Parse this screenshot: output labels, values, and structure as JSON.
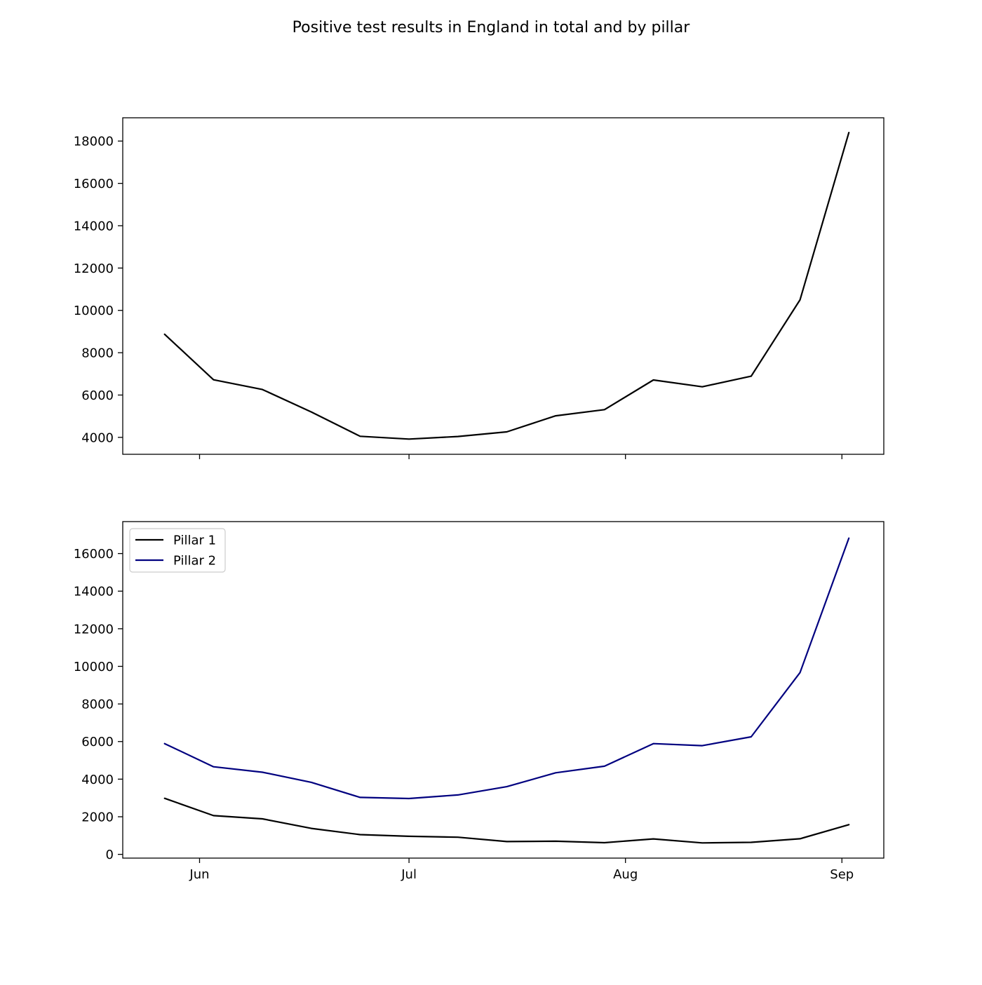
{
  "figure": {
    "suptitle": "Positive test results in England in total and by pillar"
  },
  "chart_data": [
    {
      "type": "line",
      "x_axis": "date",
      "x_dates": [
        "2020-05-27",
        "2020-06-03",
        "2020-06-10",
        "2020-06-17",
        "2020-06-24",
        "2020-07-01",
        "2020-07-08",
        "2020-07-15",
        "2020-07-22",
        "2020-07-29",
        "2020-08-05",
        "2020-08-12",
        "2020-08-19",
        "2020-08-26",
        "2020-09-02"
      ],
      "xticks": [
        {
          "date": "2020-06-01",
          "label": ""
        },
        {
          "date": "2020-07-01",
          "label": ""
        },
        {
          "date": "2020-08-01",
          "label": ""
        },
        {
          "date": "2020-09-01",
          "label": ""
        }
      ],
      "xlim": [
        "2020-05-21",
        "2020-09-07"
      ],
      "ylim": [
        3200,
        19100
      ],
      "yticks": [
        4000,
        6000,
        8000,
        10000,
        12000,
        14000,
        16000,
        18000
      ],
      "ytick_labels": [
        "4000",
        "6000",
        "8000",
        "10000",
        "12000",
        "14000",
        "16000",
        "18000"
      ],
      "grid": false,
      "series": [
        {
          "color": "#000000",
          "values": [
            8870,
            6720,
            6260,
            5200,
            4050,
            3920,
            4040,
            4260,
            5020,
            5310,
            6710,
            6390,
            6890,
            10500,
            18400
          ]
        }
      ]
    },
    {
      "type": "line",
      "x_axis": "date",
      "x_dates": [
        "2020-05-27",
        "2020-06-03",
        "2020-06-10",
        "2020-06-17",
        "2020-06-24",
        "2020-07-01",
        "2020-07-08",
        "2020-07-15",
        "2020-07-22",
        "2020-07-29",
        "2020-08-05",
        "2020-08-12",
        "2020-08-19",
        "2020-08-26",
        "2020-09-02"
      ],
      "xticks": [
        {
          "date": "2020-06-01",
          "label": "Jun"
        },
        {
          "date": "2020-07-01",
          "label": "Jul"
        },
        {
          "date": "2020-08-01",
          "label": "Aug"
        },
        {
          "date": "2020-09-01",
          "label": "Sep"
        }
      ],
      "xlim": [
        "2020-05-21",
        "2020-09-07"
      ],
      "ylim": [
        -200,
        17700
      ],
      "yticks": [
        0,
        2000,
        4000,
        6000,
        8000,
        10000,
        12000,
        14000,
        16000
      ],
      "ytick_labels": [
        "0",
        "2000",
        "4000",
        "6000",
        "8000",
        "10000",
        "12000",
        "14000",
        "16000"
      ],
      "grid": false,
      "legend": "top-left",
      "series": [
        {
          "name": "Pillar 1",
          "color": "#000000",
          "values": [
            2980,
            2060,
            1890,
            1380,
            1050,
            960,
            910,
            680,
            700,
            620,
            820,
            610,
            640,
            830,
            1580
          ]
        },
        {
          "name": "Pillar 2",
          "color": "#00007f",
          "values": [
            5890,
            4660,
            4370,
            3830,
            3030,
            2970,
            3160,
            3600,
            4340,
            4690,
            5890,
            5780,
            6250,
            9670,
            16820
          ]
        }
      ]
    }
  ]
}
